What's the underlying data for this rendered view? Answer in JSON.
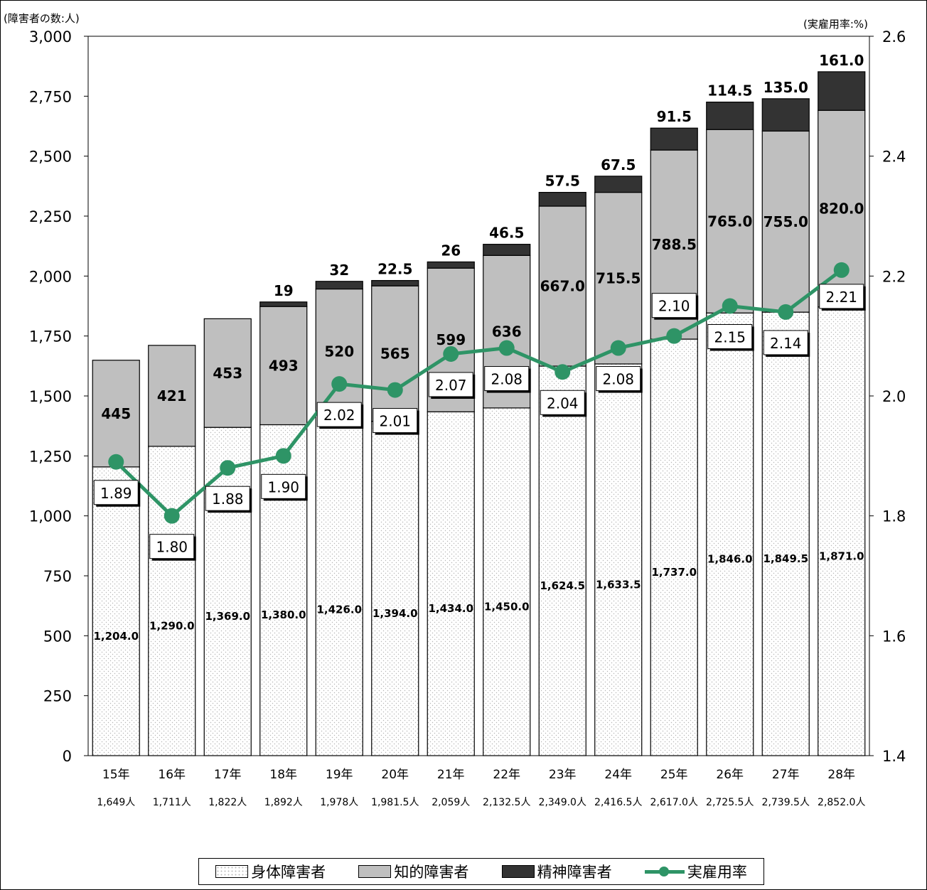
{
  "left_axis_unit": "(障害者の数:人)",
  "right_axis_unit": "(実雇用率:%)",
  "legend": {
    "physical": "身体障害者",
    "intellectual": "知的障害者",
    "mental": "精神障害者",
    "rate": "実雇用率"
  },
  "colors": {
    "physical": "#ffffff",
    "intellectual": "#bfbfbf",
    "mental": "#333333",
    "rate": "#2e9466"
  },
  "chart_data": {
    "type": "bar",
    "stacked": true,
    "categories": [
      "15年",
      "16年",
      "17年",
      "18年",
      "19年",
      "20年",
      "21年",
      "22年",
      "23年",
      "24年",
      "25年",
      "26年",
      "27年",
      "28年"
    ],
    "totals_labels": [
      "1,649人",
      "1,711人",
      "1,822人",
      "1,892人",
      "1,978人",
      "1,981.5人",
      "2,059人",
      "2,132.5人",
      "2,349.0人",
      "2,416.5人",
      "2,617.0人",
      "2,725.5人",
      "2,739.5人",
      "2,852.0人"
    ],
    "series": [
      {
        "name": "身体障害者",
        "values": [
          1204.0,
          1290.0,
          1369.0,
          1380.0,
          1426.0,
          1394.0,
          1434.0,
          1450.0,
          1624.5,
          1633.5,
          1737.0,
          1846.0,
          1849.5,
          1871.0
        ],
        "labels": [
          "1,204.0",
          "1,290.0",
          "1,369.0",
          "1,380.0",
          "1,426.0",
          "1,394.0",
          "1,434.0",
          "1,450.0",
          "1,624.5",
          "1,633.5",
          "1,737.0",
          "1,846.0",
          "1,849.5",
          "1,871.0"
        ]
      },
      {
        "name": "知的障害者",
        "values": [
          445,
          421,
          453,
          493,
          520,
          565,
          599,
          636,
          667.0,
          715.5,
          788.5,
          765.0,
          755.0,
          820.0
        ],
        "labels": [
          "445",
          "421",
          "453",
          "493",
          "520",
          "565",
          "599",
          "636",
          "667.0",
          "715.5",
          "788.5",
          "765.0",
          "755.0",
          "820.0"
        ]
      },
      {
        "name": "精神障害者",
        "values": [
          0,
          0,
          0,
          19,
          32,
          22.5,
          26,
          46.5,
          57.5,
          67.5,
          91.5,
          114.5,
          135.0,
          161.0
        ],
        "labels": [
          "",
          "",
          "",
          "19",
          "32",
          "22.5",
          "26",
          "46.5",
          "57.5",
          "67.5",
          "91.5",
          "114.5",
          "135.0",
          "161.0"
        ]
      },
      {
        "name": "実雇用率",
        "type": "line",
        "axis": "right",
        "values": [
          1.89,
          1.8,
          1.88,
          1.9,
          2.02,
          2.01,
          2.07,
          2.08,
          2.04,
          2.08,
          2.1,
          2.15,
          2.14,
          2.21
        ],
        "labels": [
          "1.89",
          "1.80",
          "1.88",
          "1.90",
          "2.02",
          "2.01",
          "2.07",
          "2.08",
          "2.04",
          "2.08",
          "2.10",
          "2.15",
          "2.14",
          "2.21"
        ]
      }
    ],
    "y_left": {
      "min": 0,
      "max": 3000,
      "ticks": [
        0,
        250,
        500,
        750,
        1000,
        1250,
        1500,
        1750,
        2000,
        2250,
        2500,
        2750,
        3000
      ],
      "tick_labels": [
        "0",
        "250",
        "500",
        "750",
        "1,000",
        "1,250",
        "1,500",
        "1,750",
        "2,000",
        "2,250",
        "2,500",
        "2,750",
        "3,000"
      ]
    },
    "y_right": {
      "min": 1.4,
      "max": 2.6,
      "ticks": [
        1.4,
        1.6,
        1.8,
        2.0,
        2.2,
        2.4,
        2.6
      ],
      "tick_labels": [
        "1.4",
        "1.6",
        "1.8",
        "2.0",
        "2.2",
        "2.4",
        "2.6"
      ]
    },
    "grid": false,
    "legend_position": "bottom"
  }
}
